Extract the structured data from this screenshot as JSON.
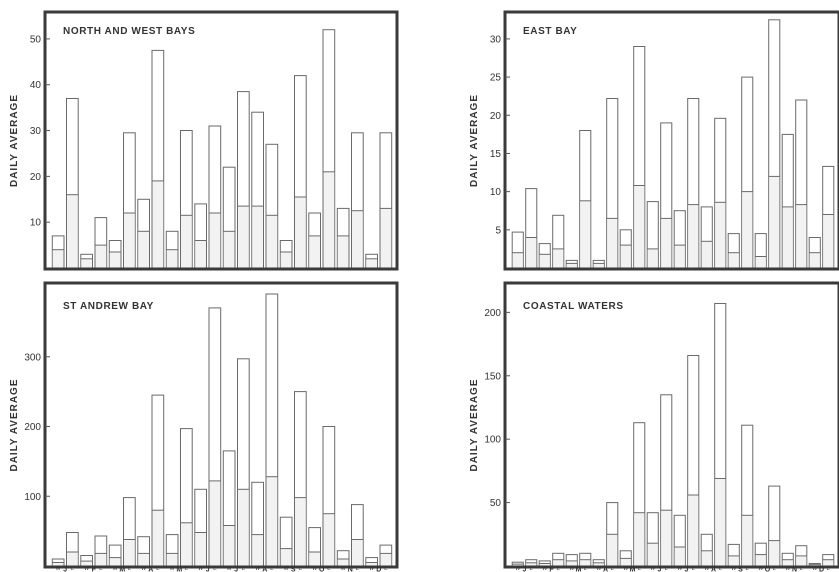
{
  "y_axis_label": "DAILY AVERAGE",
  "x_week_labels": [
    "W",
    "E"
  ],
  "months": [
    "J",
    "F",
    "M",
    "A",
    "M",
    "J",
    "J",
    "A",
    "S",
    "O",
    "N",
    "D"
  ],
  "chart_data": [
    {
      "type": "bar",
      "title": "NORTH AND WEST BAYS",
      "ylabel": "DAILY AVERAGE",
      "ylim": [
        0,
        55
      ],
      "yticks": [
        10,
        20,
        30,
        40,
        50
      ],
      "categories": [
        "J-W",
        "J-E",
        "F-W",
        "F-E",
        "M-W",
        "M-E",
        "A-W",
        "A-E",
        "M-W",
        "M-E",
        "J-W",
        "J-E",
        "J-W",
        "J-E",
        "A-W",
        "A-E",
        "S-W",
        "S-E",
        "O-W",
        "O-E",
        "N-W",
        "N-E",
        "D-W",
        "D-E"
      ],
      "series": [
        {
          "values": [
            7,
            37,
            3,
            11,
            6,
            29.5,
            15,
            47.5,
            8,
            30,
            14,
            31,
            22,
            38.5,
            34,
            27,
            6,
            42,
            12,
            52,
            13,
            29.5,
            3,
            29.5
          ]
        },
        {
          "values": [
            4,
            16,
            2,
            5,
            3.5,
            12,
            8,
            19,
            4,
            11.5,
            6,
            12,
            8,
            13.5,
            13.5,
            11.5,
            3.5,
            15.5,
            7,
            21,
            7,
            12.5,
            2,
            13
          ]
        }
      ]
    },
    {
      "type": "bar",
      "title": "EAST BAY",
      "ylabel": "DAILY AVERAGE",
      "ylim": [
        0,
        33
      ],
      "yticks": [
        5,
        10,
        15,
        20,
        25,
        30
      ],
      "categories": [
        "J-W",
        "J-E",
        "F-W",
        "F-E",
        "M-W",
        "M-E",
        "A-W",
        "A-E",
        "M-W",
        "M-E",
        "J-W",
        "J-E",
        "J-W",
        "J-E",
        "A-W",
        "A-E",
        "S-W",
        "S-E",
        "O-W",
        "O-E",
        "N-W",
        "N-E",
        "D-W",
        "D-E"
      ],
      "series": [
        {
          "values": [
            4.7,
            10.4,
            3.2,
            6.9,
            1,
            18,
            1,
            22.2,
            5,
            29,
            8.7,
            19,
            7.5,
            22.2,
            8,
            19.6,
            4.5,
            25,
            4.5,
            32.5,
            17.5,
            22,
            4,
            13.3
          ]
        },
        {
          "values": [
            2,
            4,
            1.8,
            2.5,
            0.6,
            8.8,
            0.6,
            6.5,
            3,
            10.8,
            2.5,
            6.5,
            3,
            8.3,
            3.5,
            8.6,
            2,
            10,
            1.5,
            12,
            8,
            8.3,
            2,
            7
          ]
        }
      ]
    },
    {
      "type": "bar",
      "title": "ST ANDREW BAY",
      "ylabel": "DAILY AVERAGE",
      "ylim": [
        0,
        400
      ],
      "yticks": [
        100,
        200,
        300
      ],
      "categories": [
        "J-W",
        "J-E",
        "F-W",
        "F-E",
        "M-W",
        "M-E",
        "A-W",
        "A-E",
        "M-W",
        "M-E",
        "J-W",
        "J-E",
        "J-W",
        "J-E",
        "A-W",
        "A-E",
        "S-W",
        "S-E",
        "O-W",
        "O-E",
        "N-W",
        "N-E",
        "D-W",
        "D-E"
      ],
      "series": [
        {
          "values": [
            10,
            48,
            15,
            43,
            30,
            98,
            42,
            245,
            45,
            197,
            110,
            370,
            165,
            297,
            120,
            390,
            70,
            250,
            55,
            200,
            22,
            88,
            12,
            30
          ]
        },
        {
          "values": [
            5,
            20,
            7,
            18,
            12,
            38,
            18,
            80,
            18,
            62,
            48,
            122,
            58,
            110,
            45,
            128,
            25,
            98,
            20,
            75,
            10,
            38,
            5,
            18
          ]
        }
      ]
    },
    {
      "type": "bar",
      "title": "COASTAL WATERS",
      "ylabel": "DAILY AVERAGE",
      "ylim": [
        0,
        220
      ],
      "yticks": [
        50,
        100,
        150,
        200
      ],
      "categories": [
        "J-W",
        "J-E",
        "F-W",
        "F-E",
        "M-W",
        "M-E",
        "A-W",
        "A-E",
        "M-W",
        "M-E",
        "J-W",
        "J-E",
        "J-W",
        "J-E",
        "A-W",
        "A-E",
        "S-W",
        "S-E",
        "O-W",
        "O-E",
        "N-W",
        "N-E",
        "D-W",
        "D-E"
      ],
      "series": [
        {
          "values": [
            3,
            5,
            4,
            10,
            9,
            10,
            5,
            50,
            12,
            113,
            42,
            135,
            40,
            166,
            25,
            207,
            17,
            111,
            18,
            63,
            10,
            16,
            2,
            9
          ]
        },
        {
          "values": [
            1.5,
            2.5,
            2,
            5,
            4,
            5,
            2.5,
            25,
            6,
            42,
            18,
            44,
            15,
            56,
            12,
            69,
            8,
            40,
            9,
            20,
            5,
            8,
            1,
            5
          ]
        }
      ]
    }
  ]
}
